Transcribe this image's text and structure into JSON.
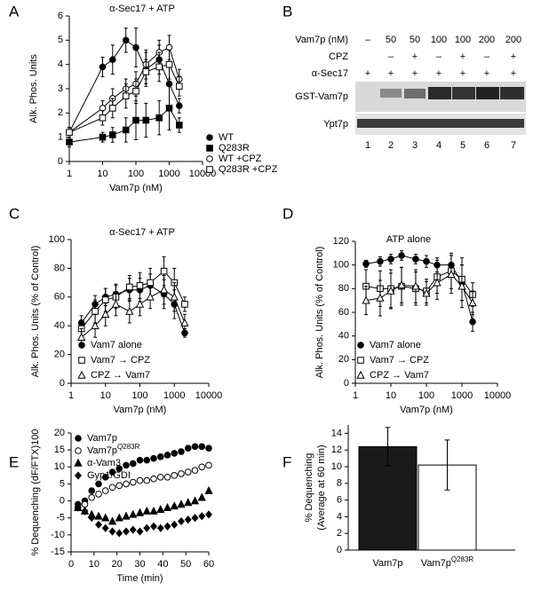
{
  "chart_data": [
    {
      "type": "line",
      "panel": "A",
      "title": "α-Sec17 + ATP",
      "xlabel": "Vam7p (nM)",
      "ylabel": "Alk. Phos. Units",
      "xscale": "log",
      "xlim": [
        1,
        10000
      ],
      "xticks": [
        1,
        10,
        100,
        1000,
        10000
      ],
      "ylim": [
        0,
        6
      ],
      "yticks": [
        0,
        1,
        2,
        3,
        4,
        5,
        6
      ],
      "x": [
        1,
        10,
        20,
        50,
        100,
        200,
        500,
        1000,
        2000
      ],
      "series": [
        {
          "name": "WT",
          "color": "#000000",
          "marker": "circle-filled",
          "values": [
            1.2,
            3.9,
            4.2,
            5.0,
            4.7,
            3.8,
            4.2,
            3.2,
            2.3
          ],
          "errors": [
            0.2,
            0.4,
            0.6,
            0.5,
            0.8,
            0.7,
            0.6,
            0.9,
            0.3
          ]
        },
        {
          "name": "Q283R",
          "color": "#000000",
          "marker": "square-filled",
          "values": [
            0.8,
            1.0,
            1.1,
            1.3,
            1.7,
            1.7,
            1.8,
            2.2,
            1.5
          ],
          "errors": [
            0.2,
            0.2,
            0.3,
            0.5,
            0.8,
            0.7,
            0.7,
            0.9,
            0.3
          ]
        },
        {
          "name": "WT +CPZ",
          "color": "#000000",
          "marker": "circle-open",
          "values": [
            1.2,
            2.2,
            2.6,
            3.0,
            3.2,
            4.0,
            4.5,
            4.7,
            3.4
          ],
          "errors": [
            0.2,
            0.3,
            0.4,
            0.4,
            0.5,
            0.6,
            0.5,
            0.5,
            0.4
          ]
        },
        {
          "name": "Q283R +CPZ",
          "color": "#000000",
          "marker": "square-open",
          "values": [
            1.2,
            1.8,
            2.2,
            2.7,
            2.9,
            3.7,
            3.9,
            4.0,
            3.1
          ],
          "errors": [
            0.2,
            0.3,
            0.4,
            0.5,
            0.5,
            0.5,
            0.6,
            0.6,
            0.4
          ]
        }
      ]
    },
    {
      "type": "line",
      "panel": "C",
      "title": "α-Sec17 + ATP",
      "xlabel": "Vam7p (nM)",
      "ylabel": "Alk. Phos. Units (% of Control)",
      "xscale": "log",
      "xlim": [
        1,
        10000
      ],
      "xticks": [
        1,
        10,
        100,
        1000,
        10000
      ],
      "ylim": [
        0,
        100
      ],
      "yticks": [
        0,
        20,
        40,
        60,
        80,
        100
      ],
      "x": [
        2,
        5,
        10,
        20,
        50,
        100,
        200,
        500,
        1000,
        2000
      ],
      "series": [
        {
          "name": "Vam7 alone",
          "color": "#000000",
          "marker": "circle-filled",
          "values": [
            42,
            55,
            60,
            62,
            65,
            65,
            68,
            62,
            55,
            35
          ],
          "errors": [
            5,
            6,
            6,
            7,
            8,
            8,
            8,
            10,
            10,
            3
          ]
        },
        {
          "name": "Vam7 → CPZ",
          "color": "#000000",
          "marker": "square-open",
          "values": [
            38,
            50,
            58,
            60,
            67,
            68,
            70,
            78,
            70,
            55
          ],
          "errors": [
            6,
            8,
            8,
            8,
            8,
            9,
            10,
            10,
            10,
            5
          ]
        },
        {
          "name": "CPZ → Vam7",
          "color": "#000000",
          "marker": "triangle-open",
          "values": [
            32,
            40,
            48,
            55,
            50,
            55,
            60,
            65,
            60,
            42
          ],
          "errors": [
            6,
            8,
            8,
            8,
            8,
            8,
            8,
            10,
            10,
            6
          ]
        }
      ]
    },
    {
      "type": "line",
      "panel": "D",
      "title": "ATP alone",
      "xlabel": "Vam7p (nM)",
      "ylabel": "Alk. Phos. Units (% of Control)",
      "xscale": "log",
      "xlim": [
        1,
        10000
      ],
      "xticks": [
        1,
        10,
        100,
        1000,
        10000
      ],
      "ylim": [
        0,
        120
      ],
      "yticks": [
        0,
        20,
        40,
        60,
        80,
        100,
        120
      ],
      "x": [
        2,
        5,
        10,
        20,
        50,
        100,
        200,
        500,
        1000,
        2000
      ],
      "series": [
        {
          "name": "Vam7 alone",
          "color": "#000000",
          "marker": "circle-filled",
          "values": [
            101,
            103,
            105,
            108,
            105,
            103,
            100,
            100,
            85,
            52
          ],
          "errors": [
            3,
            4,
            4,
            4,
            4,
            5,
            6,
            8,
            15,
            8
          ]
        },
        {
          "name": "Vam7 → CPZ",
          "color": "#000000",
          "marker": "square-open",
          "values": [
            82,
            80,
            80,
            82,
            80,
            78,
            90,
            95,
            88,
            75
          ],
          "errors": [
            14,
            15,
            16,
            16,
            14,
            10,
            14,
            15,
            18,
            10
          ]
        },
        {
          "name": "CPZ → Vam7",
          "color": "#000000",
          "marker": "triangle-open",
          "values": [
            70,
            72,
            78,
            83,
            82,
            76,
            85,
            92,
            82,
            68
          ],
          "errors": [
            12,
            15,
            15,
            15,
            14,
            10,
            14,
            16,
            18,
            10
          ]
        }
      ]
    },
    {
      "type": "scatter",
      "panel": "E",
      "xlabel": "Time (min)",
      "ylabel": "% Dequenching (dF/FTX)100",
      "xlim": [
        0,
        60
      ],
      "xticks": [
        0,
        10,
        20,
        30,
        40,
        50,
        60
      ],
      "ylim": [
        -15,
        20
      ],
      "yticks": [
        -15,
        -10,
        -5,
        0,
        5,
        10,
        15,
        20
      ],
      "x": [
        3,
        6,
        9,
        12,
        15,
        18,
        21,
        24,
        27,
        30,
        33,
        36,
        39,
        42,
        45,
        48,
        51,
        54,
        57,
        60
      ],
      "series": [
        {
          "name": "Vam7p",
          "color": "#000000",
          "marker": "circle-filled",
          "values": [
            -1,
            0,
            3,
            5,
            7,
            8.5,
            9.5,
            10.5,
            11,
            12,
            12,
            12.5,
            13,
            13.5,
            14,
            14.5,
            15.5,
            16,
            16,
            15.5
          ]
        },
        {
          "name": "Vam7p",
          "name_sup": "Q283R",
          "color": "#000000",
          "marker": "circle-open",
          "values": [
            -2,
            -1,
            1,
            2,
            3,
            4,
            4.5,
            5,
            5.5,
            6,
            6,
            6.5,
            7,
            7,
            7.5,
            8,
            8.5,
            9,
            10,
            10.5
          ]
        },
        {
          "name": "α-Vam3",
          "color": "#000000",
          "marker": "triangle-filled",
          "values": [
            -2,
            -3,
            -4,
            -4.5,
            -5,
            -6,
            -5,
            -4.5,
            -4,
            -3.5,
            -3,
            -3,
            -2.5,
            -2,
            -1.5,
            -1,
            -0.5,
            0,
            1,
            3
          ]
        },
        {
          "name": "Gyp1/GDI",
          "color": "#000000",
          "marker": "diamond-filled",
          "values": [
            -2,
            -3,
            -5,
            -7,
            -8,
            -9,
            -9.5,
            -9,
            -8.5,
            -9,
            -8,
            -7.5,
            -8,
            -7.5,
            -7,
            -6,
            -5.5,
            -5,
            -4.5,
            -4
          ]
        }
      ]
    },
    {
      "type": "bar",
      "panel": "F",
      "ylabel": [
        "% Dequenching",
        "(Average at 60 min)"
      ],
      "ylim": [
        0,
        15
      ],
      "yticks": [
        0,
        2,
        4,
        6,
        8,
        10,
        12,
        14
      ],
      "categories": [
        "Vam7p",
        {
          "label": "Vam7p",
          "sup": "Q283R"
        }
      ],
      "values": [
        12.4,
        10.2
      ],
      "errors": [
        2.3,
        3.0
      ],
      "colors": [
        "#1a1a1a",
        "#ffffff"
      ]
    }
  ],
  "blot": {
    "panel": "B",
    "rows": [
      {
        "label": "Vam7p (nM)",
        "cells": [
          "–",
          "50",
          "50",
          "100",
          "100",
          "200",
          "200"
        ]
      },
      {
        "label": "CPZ",
        "cells": [
          null,
          "–",
          "+",
          "–",
          "+",
          "–",
          "+"
        ]
      },
      {
        "label": "α-Sec17",
        "cells": [
          "+",
          "+",
          "+",
          "+",
          "+",
          "+",
          "+"
        ]
      }
    ],
    "bands": [
      "GST-Vam7p",
      "Ypt7p"
    ],
    "lanes": [
      1,
      2,
      3,
      4,
      5,
      6,
      7
    ]
  }
}
